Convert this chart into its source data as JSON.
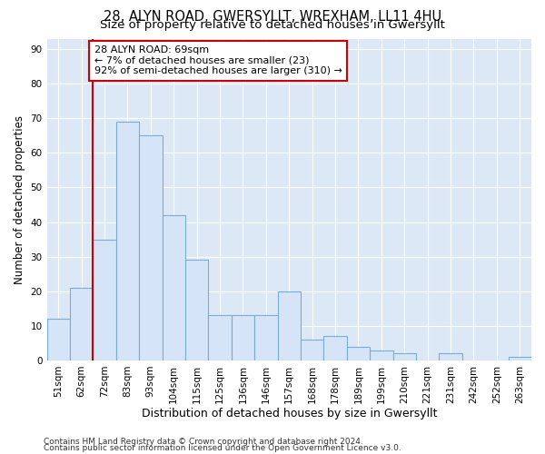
{
  "title": "28, ALYN ROAD, GWERSYLLT, WREXHAM, LL11 4HU",
  "subtitle": "Size of property relative to detached houses in Gwersyllt",
  "xlabel": "Distribution of detached houses by size in Gwersyllt",
  "ylabel": "Number of detached properties",
  "categories": [
    "51sqm",
    "62sqm",
    "72sqm",
    "83sqm",
    "93sqm",
    "104sqm",
    "115sqm",
    "125sqm",
    "136sqm",
    "146sqm",
    "157sqm",
    "168sqm",
    "178sqm",
    "189sqm",
    "199sqm",
    "210sqm",
    "221sqm",
    "231sqm",
    "242sqm",
    "252sqm",
    "263sqm"
  ],
  "values": [
    12,
    21,
    35,
    69,
    65,
    42,
    29,
    13,
    13,
    13,
    20,
    6,
    7,
    4,
    3,
    2,
    0,
    2,
    0,
    0,
    1
  ],
  "bar_color": "#d6e4f7",
  "bar_edge_color": "#7aadd4",
  "highlight_index": 2,
  "highlight_line_color": "#cc0000",
  "annotation_text": "28 ALYN ROAD: 69sqm\n← 7% of detached houses are smaller (23)\n92% of semi-detached houses are larger (310) →",
  "annotation_box_color": "#ffffff",
  "annotation_box_edge": "#cc0000",
  "ylim": [
    0,
    93
  ],
  "yticks": [
    0,
    10,
    20,
    30,
    40,
    50,
    60,
    70,
    80,
    90
  ],
  "fig_bg_color": "#ffffff",
  "plot_bg_color": "#dce8f5",
  "grid_color": "#ffffff",
  "footer_line1": "Contains HM Land Registry data © Crown copyright and database right 2024.",
  "footer_line2": "Contains public sector information licensed under the Open Government Licence v3.0.",
  "title_fontsize": 10.5,
  "subtitle_fontsize": 9.5,
  "xlabel_fontsize": 9,
  "ylabel_fontsize": 8.5,
  "tick_fontsize": 7.5,
  "annotation_fontsize": 8,
  "footer_fontsize": 6.5
}
